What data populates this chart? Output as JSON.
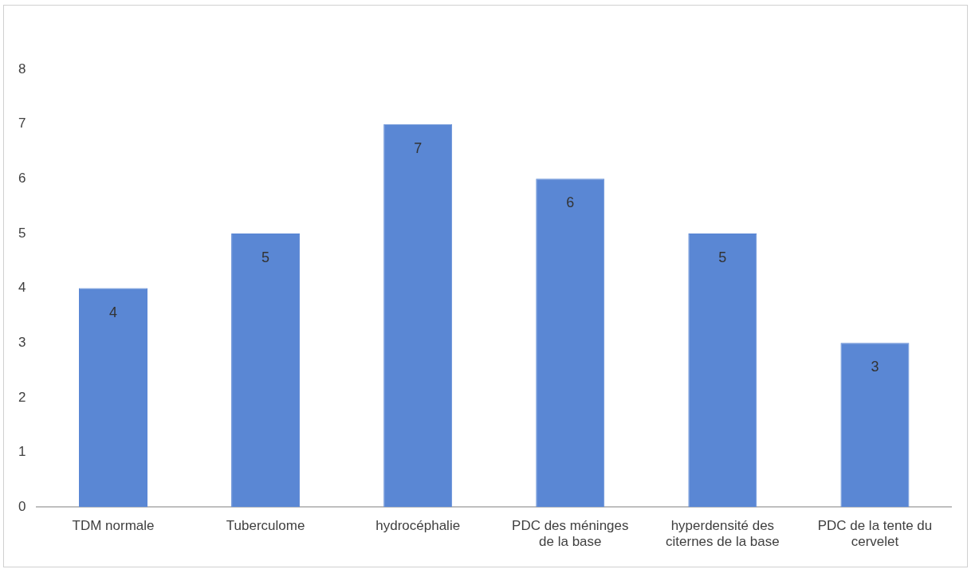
{
  "chart_data": {
    "type": "bar",
    "categories": [
      "TDM normale",
      "Tuberculome",
      "hydrocéphalie",
      "PDC des méninges de la base",
      "hyperdensité des citernes de la base",
      "PDC de la tente du cervelet"
    ],
    "values": [
      4,
      5,
      7,
      6,
      5,
      3
    ],
    "color": "#5a87d4",
    "ylim": [
      0,
      8
    ],
    "yticks": [
      0,
      1,
      2,
      3,
      4,
      5,
      6,
      7,
      8
    ],
    "grid": false,
    "legend": false,
    "data_labels": true
  }
}
